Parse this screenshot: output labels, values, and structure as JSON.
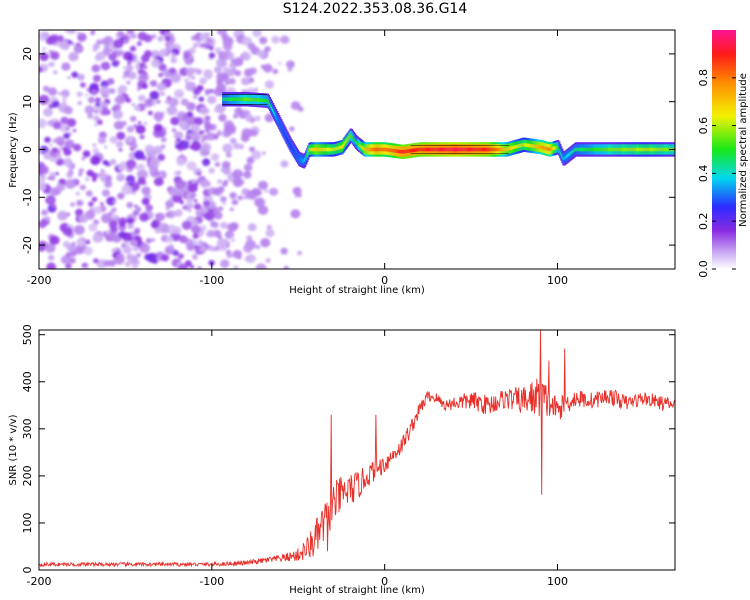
{
  "title": "S124.2022.353.08.36.G14",
  "colors": {
    "snr_line": "#e8302a",
    "frame": "#000000"
  },
  "chart_data": [
    {
      "type": "heatmap",
      "xlabel": "Height of straight line (km)",
      "ylabel": "Frequency (Hz)",
      "xlim": [
        -200,
        168
      ],
      "ylim": [
        -25,
        25
      ],
      "x_ticks": [
        -200,
        -100,
        0,
        100
      ],
      "y_ticks": [
        20,
        10,
        0,
        -10,
        -20
      ],
      "colorbar": {
        "label": "Normalized spectral amplitude",
        "range": [
          0,
          1
        ],
        "ticks": [
          0.0,
          0.2,
          0.4,
          0.6,
          0.8
        ],
        "colormap": "rainbow (white-purple-blue-cyan-green-yellow-red-magenta)"
      },
      "noise_region_x": [
        -200,
        -62
      ],
      "ridge": {
        "x": [
          -94,
          -80,
          -68,
          -62,
          -55,
          -50,
          -47,
          -44,
          -40,
          -30,
          -25,
          -20,
          -17,
          -12,
          -5,
          0,
          10,
          20,
          40,
          60,
          70,
          80,
          90,
          95,
          100,
          103,
          110,
          130,
          150,
          168
        ],
        "y": [
          10.5,
          10.5,
          10.2,
          6,
          1,
          -2,
          -2.5,
          0,
          0,
          0,
          0.5,
          3,
          1.5,
          0,
          0,
          0,
          -0.5,
          0,
          0,
          0,
          0,
          1,
          0.5,
          0,
          0.5,
          -2,
          0,
          0,
          0,
          0
        ],
        "amplitude": [
          0.45,
          0.55,
          0.5,
          0.3,
          0.25,
          0.3,
          0.35,
          0.6,
          0.7,
          0.6,
          0.65,
          0.55,
          0.45,
          0.7,
          0.85,
          0.8,
          0.9,
          0.9,
          0.95,
          0.9,
          0.7,
          0.6,
          0.75,
          0.8,
          0.5,
          0.35,
          0.45,
          0.55,
          0.6,
          0.55
        ]
      }
    },
    {
      "type": "line",
      "xlabel": "Height of straight line (km)",
      "ylabel": "SNR (10 * v/v)",
      "xlim": [
        -200,
        168
      ],
      "ylim": [
        0,
        510
      ],
      "x_ticks": [
        -200,
        -100,
        0,
        100
      ],
      "y_ticks": [
        0,
        100,
        200,
        300,
        400,
        500
      ],
      "series": [
        {
          "x": [
            -200,
            -150,
            -100,
            -80,
            -70,
            -60,
            -55,
            -50,
            -45,
            -40,
            -35,
            -30,
            -25,
            -20,
            -15,
            -10,
            -5,
            0,
            5,
            10,
            15,
            20,
            25,
            30,
            35,
            40,
            50,
            60,
            70,
            80,
            90,
            100,
            110,
            120,
            130,
            140,
            150,
            160,
            168
          ],
          "y": [
            12,
            12,
            12,
            15,
            20,
            25,
            28,
            32,
            45,
            65,
            100,
            140,
            160,
            170,
            180,
            200,
            215,
            225,
            245,
            265,
            300,
            340,
            370,
            365,
            350,
            355,
            360,
            350,
            365,
            360,
            370,
            340,
            365,
            360,
            370,
            355,
            365,
            355,
            350
          ],
          "noise_amplitude": [
            4,
            4,
            4,
            5,
            6,
            8,
            10,
            15,
            25,
            40,
            45,
            45,
            40,
            35,
            30,
            25,
            22,
            20,
            18,
            18,
            18,
            15,
            12,
            12,
            12,
            15,
            20,
            22,
            22,
            30,
            45,
            25,
            20,
            18,
            18,
            16,
            15,
            15,
            15
          ]
        }
      ],
      "spikes": [
        {
          "x": -31,
          "y": 330
        },
        {
          "x": -33,
          "y": 40
        },
        {
          "x": -5,
          "y": 330
        },
        {
          "x": 90,
          "y": 510
        },
        {
          "x": 91,
          "y": 160
        },
        {
          "x": 104,
          "y": 470
        },
        {
          "x": 95,
          "y": 445
        }
      ]
    }
  ]
}
